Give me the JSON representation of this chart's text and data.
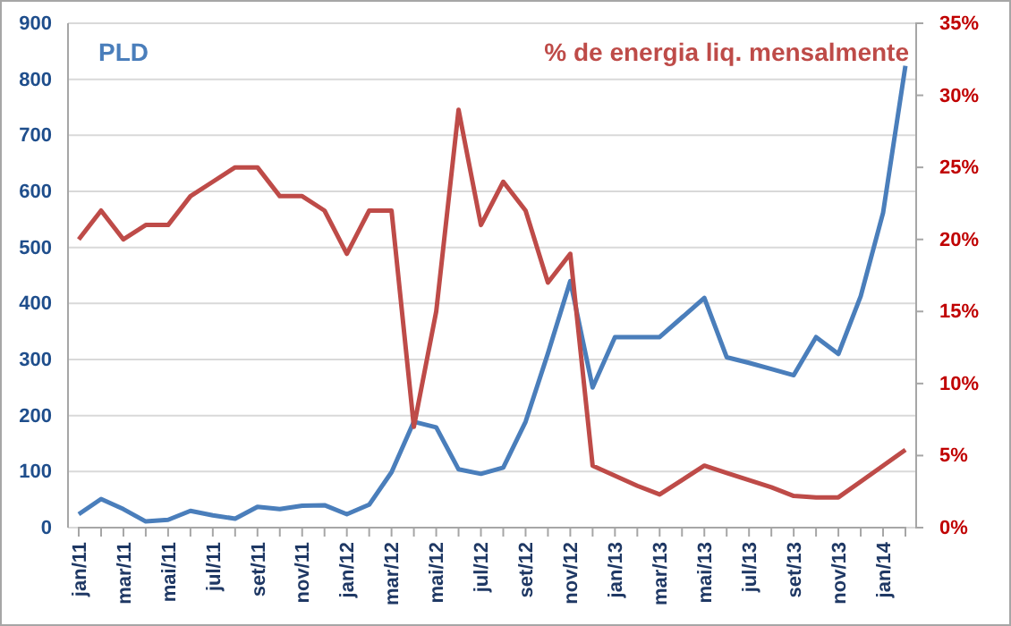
{
  "chart_data": {
    "type": "line",
    "categories": [
      "jan/11",
      null,
      "mar/11",
      null,
      "mai/11",
      null,
      "jul/11",
      null,
      "set/11",
      null,
      "nov/11",
      null,
      "jan/12",
      null,
      "mar/12",
      null,
      "mai/12",
      null,
      "jul/12",
      null,
      "set/12",
      null,
      "nov/12",
      null,
      "jan/13",
      null,
      "mar/13",
      null,
      "mai/13",
      null,
      "jul/13",
      null,
      "set/13",
      null,
      "nov/13",
      null,
      "jan/14",
      null
    ],
    "series": [
      {
        "name": "PLD",
        "color": "#4a7ebb",
        "values": [
          24,
          51,
          33,
          11,
          14,
          30,
          22,
          16,
          37,
          33,
          39,
          40,
          24,
          41,
          99,
          189,
          179,
          104,
          96,
          107,
          189,
          311,
          440,
          250,
          340,
          340,
          340,
          375,
          410,
          304,
          294,
          283,
          272,
          340,
          310,
          413,
          562,
          824
        ]
      },
      {
        "name": "% de energia liq. mensalmente",
        "color": "#be4b48",
        "axis": "y2",
        "values": [
          20,
          22,
          20,
          21,
          21,
          23,
          24,
          25,
          25,
          23,
          23,
          22,
          19,
          22,
          22,
          7,
          15,
          29,
          21,
          24,
          22,
          17,
          19,
          4.3,
          3.6,
          2.9,
          2.3,
          3.3,
          4.3,
          3.8,
          3.3,
          2.8,
          2.2,
          2.1,
          2.1,
          3.2,
          4.3,
          5.4
        ]
      }
    ],
    "ylim": [
      0,
      900
    ],
    "yticks": [
      0,
      100,
      200,
      300,
      400,
      500,
      600,
      700,
      800,
      900
    ],
    "y2lim": [
      0,
      35
    ],
    "y2ticks": [
      {
        "value": 0,
        "label": "0%"
      },
      {
        "value": 5,
        "label": "5%"
      },
      {
        "value": 10,
        "label": "10%"
      },
      {
        "value": 15,
        "label": "15%"
      },
      {
        "value": 20,
        "label": "20%"
      },
      {
        "value": 25,
        "label": "25%"
      },
      {
        "value": 30,
        "label": "30%"
      },
      {
        "value": 35,
        "label": "35%"
      }
    ],
    "grid": "y",
    "marker": "none",
    "line_style": "solid"
  }
}
